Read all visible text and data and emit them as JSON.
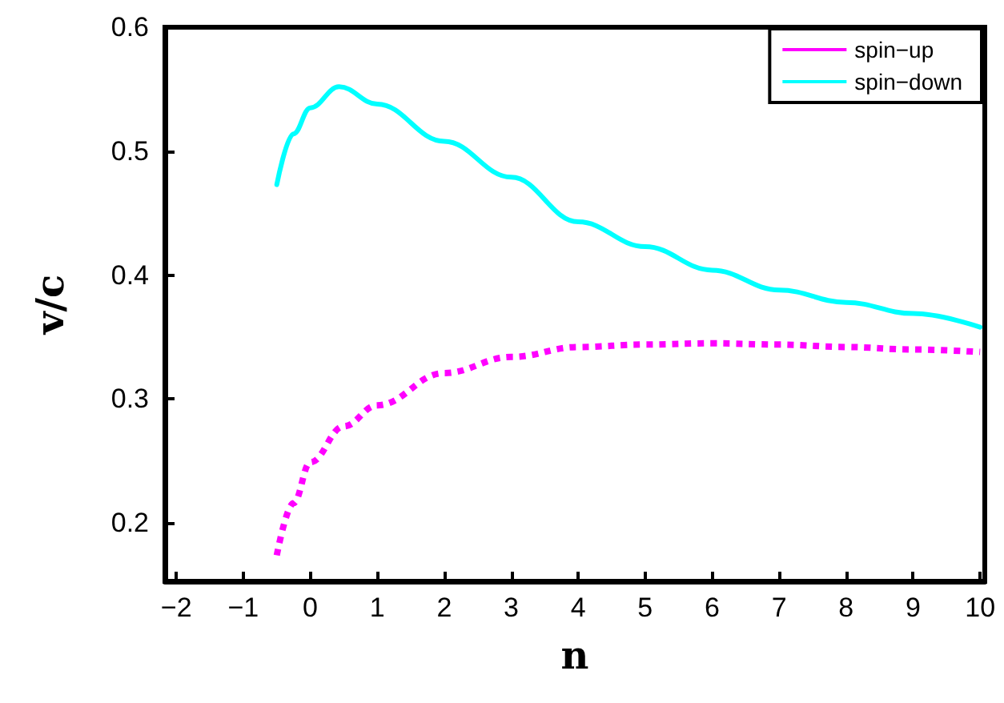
{
  "chart_data": {
    "type": "line",
    "xlabel": "n",
    "ylabel": "v/c",
    "xlim": [
      -2.17,
      10.07
    ],
    "xticks": [
      -2,
      -1,
      0,
      1,
      2,
      3,
      4,
      5,
      6,
      7,
      8,
      9,
      10
    ],
    "ylim": [
      0.153,
      0.6
    ],
    "yticks": [
      0.2,
      0.3,
      0.4,
      0.5,
      0.6
    ],
    "grid": false,
    "legend": "top right",
    "marker": "none",
    "series": [
      {
        "name": "spin−up",
        "color": "#ff00ff",
        "line_style": "dotted",
        "x": [
          -0.5,
          -0.25,
          0,
          0.5,
          1,
          2,
          3,
          4,
          5,
          6,
          7,
          8,
          9,
          10
        ],
        "values": [
          0.174,
          0.216,
          0.249,
          0.278,
          0.295,
          0.321,
          0.334,
          0.342,
          0.344,
          0.345,
          0.344,
          0.342,
          0.34,
          0.338
        ]
      },
      {
        "name": "spin−down",
        "color": "#00ffff",
        "line_style": "solid",
        "x": [
          -0.5,
          -0.25,
          0,
          0.43,
          1,
          2,
          3,
          4,
          5,
          6,
          7,
          8,
          9,
          10
        ],
        "values": [
          0.473,
          0.514,
          0.535,
          0.552,
          0.538,
          0.508,
          0.479,
          0.443,
          0.423,
          0.404,
          0.388,
          0.378,
          0.369,
          0.358
        ]
      }
    ]
  }
}
